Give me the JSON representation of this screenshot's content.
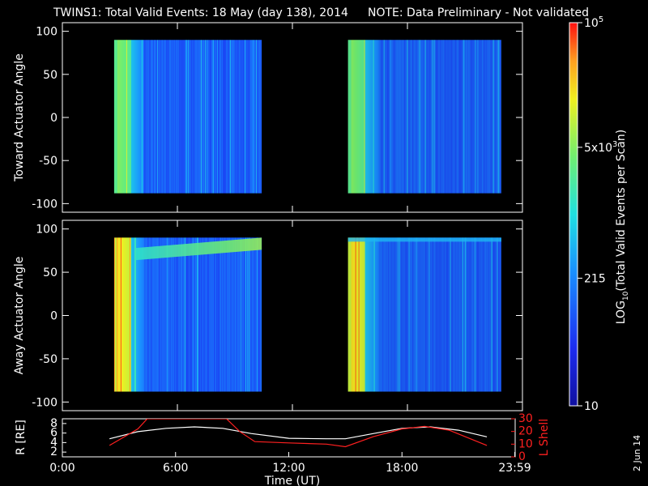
{
  "title": {
    "main": "TWINS1: Total Valid Events: 18 May (day 138), 2014",
    "note": "NOTE: Data Preliminary - Not validated",
    "note_color": "#ff2020"
  },
  "footer_date": "2 Jun 14",
  "colorbar": {
    "label": "LOG10(Total Valid Events per Scan)",
    "ticks": [
      {
        "value": 10,
        "label": "10"
      },
      {
        "value": 215,
        "label": "215"
      },
      {
        "value": 5000,
        "label": "5x10^3"
      },
      {
        "value": 100000,
        "label": "10^5"
      }
    ],
    "range": [
      10,
      100000
    ],
    "colormap": "rainbow"
  },
  "chart_data": [
    {
      "type": "heatmap",
      "panel": "top",
      "ylabel": "Toward Actuator Angle",
      "ylim": [
        -110,
        110
      ],
      "yticks": [
        -100,
        -50,
        0,
        50,
        100
      ],
      "xlim": [
        0,
        24
      ],
      "segments": [
        {
          "x_start": 2.7,
          "x_end": 10.4,
          "y_range": [
            -88,
            90
          ]
        },
        {
          "x_start": 14.9,
          "x_end": 22.9,
          "y_range": [
            -88,
            90
          ]
        }
      ],
      "description_levels": {
        "left_edge_log": 3.7,
        "body_log": 2.0
      }
    },
    {
      "type": "heatmap",
      "panel": "bottom",
      "ylabel": "Away Actuator Angle",
      "ylim": [
        -110,
        110
      ],
      "yticks": [
        -100,
        -50,
        0,
        50,
        100
      ],
      "xlim": [
        0,
        24
      ],
      "segments": [
        {
          "x_start": 2.7,
          "x_end": 10.4,
          "y_range": [
            -88,
            90
          ]
        },
        {
          "x_start": 14.9,
          "x_end": 22.9,
          "y_range": [
            -88,
            90
          ]
        }
      ],
      "description_levels": {
        "left_edge_log": 4.3,
        "body_log": 2.0
      }
    },
    {
      "type": "line",
      "panel": "orbit",
      "xlabel": "Time (UT)",
      "xticks": [
        "0:00",
        "6:00",
        "12:00",
        "18:00",
        "23:59"
      ],
      "xlim": [
        0,
        24
      ],
      "ylabel_left": "R [RE]",
      "ylim_left": [
        1,
        9
      ],
      "yticks_left": [
        2,
        4,
        6,
        8
      ],
      "ylabel_right": "L Shell",
      "ylim_right": [
        0,
        30
      ],
      "yticks_right": [
        0,
        10,
        20,
        30
      ],
      "series": [
        {
          "name": "R [RE]",
          "color": "#ffffff",
          "x": [
            2.5,
            4.0,
            5.5,
            7.0,
            8.5,
            10.0,
            12.0,
            14.0,
            15.0,
            16.5,
            18.0,
            19.5,
            21.0,
            22.5
          ],
          "y": [
            4.8,
            6.3,
            7.0,
            7.3,
            7.0,
            5.9,
            4.9,
            4.8,
            4.8,
            5.9,
            7.0,
            7.3,
            6.6,
            5.2
          ]
        },
        {
          "name": "L Shell",
          "color": "#ff2020",
          "x": [
            2.5,
            4.0,
            4.5,
            8.7,
            9.4,
            10.2,
            12.0,
            14.0,
            15.0,
            16.5,
            18.0,
            19.2,
            20.5,
            22.5
          ],
          "y": [
            9,
            22,
            30,
            30,
            20,
            12,
            11,
            10,
            8,
            16,
            22,
            24,
            21,
            9
          ]
        }
      ]
    }
  ]
}
